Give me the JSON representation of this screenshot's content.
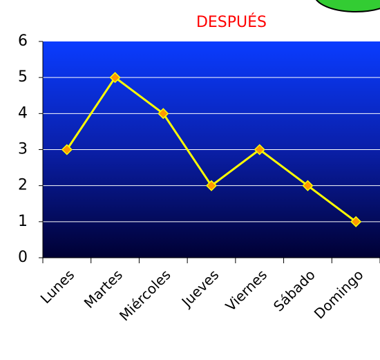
{
  "chart_data": {
    "type": "line",
    "title": "DESPUÉS",
    "categories": [
      "Lunes",
      "Martes",
      "Miércoles",
      "Jueves",
      "Viernes",
      "Sábado",
      "Domingo"
    ],
    "values": [
      3,
      5,
      4,
      2,
      3,
      2,
      1
    ],
    "color": "#ffff00",
    "marker_color": "#ff9900",
    "ylim": [
      0,
      6
    ],
    "yticks": [
      0,
      1,
      2,
      3,
      4,
      5,
      6
    ],
    "grid": true
  }
}
